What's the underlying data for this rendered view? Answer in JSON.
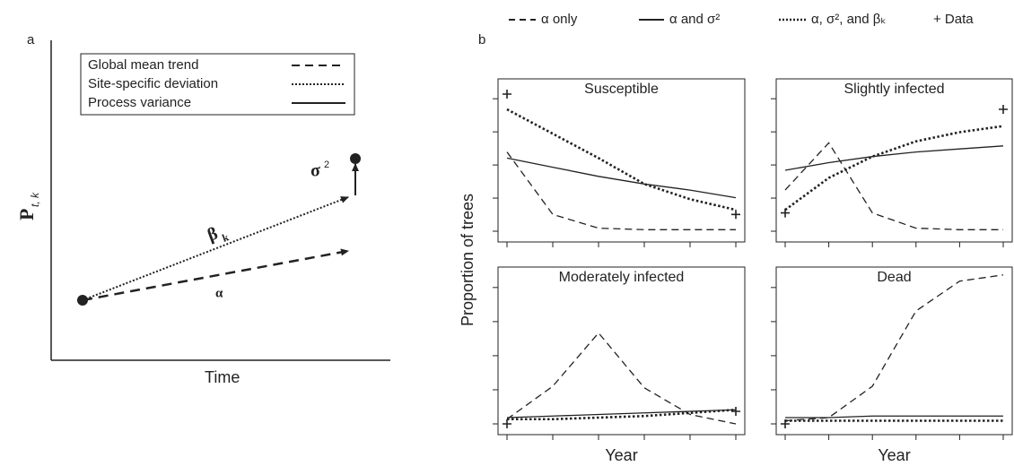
{
  "figure_a": {
    "label": "a",
    "legend": [
      "Global mean trend",
      "Site-specific deviation",
      "Process variance"
    ],
    "x_label": "Time",
    "y_label": "P",
    "y_label_sub": "t, k",
    "alpha": "α",
    "beta": "β",
    "beta_sub": "k",
    "sigma": "σ",
    "sigma_sup": "2"
  },
  "figure_b": {
    "label": "b",
    "y_label": "Proportion of trees",
    "legend": [
      "α only",
      "α and σ²",
      "α, σ², and βₖ",
      "+ Data"
    ]
  },
  "chart_data": [
    {
      "type": "line",
      "title": "Susceptible",
      "categories": [
        null,
        null,
        null,
        null,
        null,
        null
      ],
      "ylim": [
        0,
        1
      ],
      "series": [
        {
          "style": "dashed",
          "color": "#222222",
          "values": [
            0.52,
            0.11,
            0.02,
            0.01,
            0.01,
            0.01
          ]
        },
        {
          "style": "solid",
          "color": "#222222",
          "values": [
            0.48,
            0.42,
            0.36,
            0.31,
            0.27,
            0.22
          ]
        },
        {
          "style": "dotted",
          "color": "#222222",
          "values": [
            0.8,
            0.64,
            0.48,
            0.31,
            0.21,
            0.14
          ]
        },
        {
          "style": "marker",
          "color": "#222222",
          "values": [
            0.9,
            null,
            null,
            null,
            null,
            0.11
          ]
        }
      ]
    },
    {
      "type": "line",
      "title": "Slightly infected",
      "categories": [
        null,
        null,
        null,
        null,
        null,
        null
      ],
      "ylim": [
        0,
        1
      ],
      "series": [
        {
          "style": "dashed",
          "color": "#222222",
          "values": [
            0.27,
            0.58,
            0.12,
            0.02,
            0.01,
            0.01
          ]
        },
        {
          "style": "solid",
          "color": "#222222",
          "values": [
            0.4,
            0.45,
            0.49,
            0.52,
            0.54,
            0.56
          ]
        },
        {
          "style": "dotted",
          "color": "#222222",
          "values": [
            0.14,
            0.35,
            0.49,
            0.59,
            0.65,
            0.69
          ]
        },
        {
          "style": "marker",
          "color": "#222222",
          "values": [
            0.12,
            null,
            null,
            null,
            null,
            0.8
          ]
        }
      ]
    },
    {
      "type": "line",
      "title": "Moderately infected",
      "x_label": "Year",
      "categories": [
        null,
        null,
        null,
        null,
        null,
        null
      ],
      "ylim": [
        0,
        1
      ],
      "series": [
        {
          "style": "dashed",
          "color": "#222222",
          "values": [
            0.03,
            0.24,
            0.58,
            0.23,
            0.06,
            0.0
          ]
        },
        {
          "style": "solid",
          "color": "#222222",
          "values": [
            0.04,
            0.05,
            0.06,
            0.07,
            0.08,
            0.09
          ]
        },
        {
          "style": "dotted",
          "color": "#222222",
          "values": [
            0.03,
            0.03,
            0.04,
            0.05,
            0.07,
            0.09
          ]
        },
        {
          "style": "marker",
          "color": "#222222",
          "values": [
            0.0,
            null,
            null,
            null,
            null,
            0.08
          ]
        }
      ]
    },
    {
      "type": "line",
      "title": "Dead",
      "x_label": "Year",
      "categories": [
        null,
        null,
        null,
        null,
        null,
        null
      ],
      "ylim": [
        0,
        1
      ],
      "series": [
        {
          "style": "dashed",
          "color": "#222222",
          "values": [
            0.02,
            0.04,
            0.24,
            0.72,
            0.91,
            0.95
          ]
        },
        {
          "style": "solid",
          "color": "#222222",
          "values": [
            0.04,
            0.04,
            0.05,
            0.05,
            0.05,
            0.05
          ]
        },
        {
          "style": "dotted",
          "color": "#222222",
          "values": [
            0.02,
            0.02,
            0.02,
            0.02,
            0.02,
            0.02
          ]
        },
        {
          "style": "marker",
          "color": "#222222",
          "values": [
            0.0,
            null,
            null,
            null,
            null,
            null
          ]
        }
      ]
    }
  ]
}
